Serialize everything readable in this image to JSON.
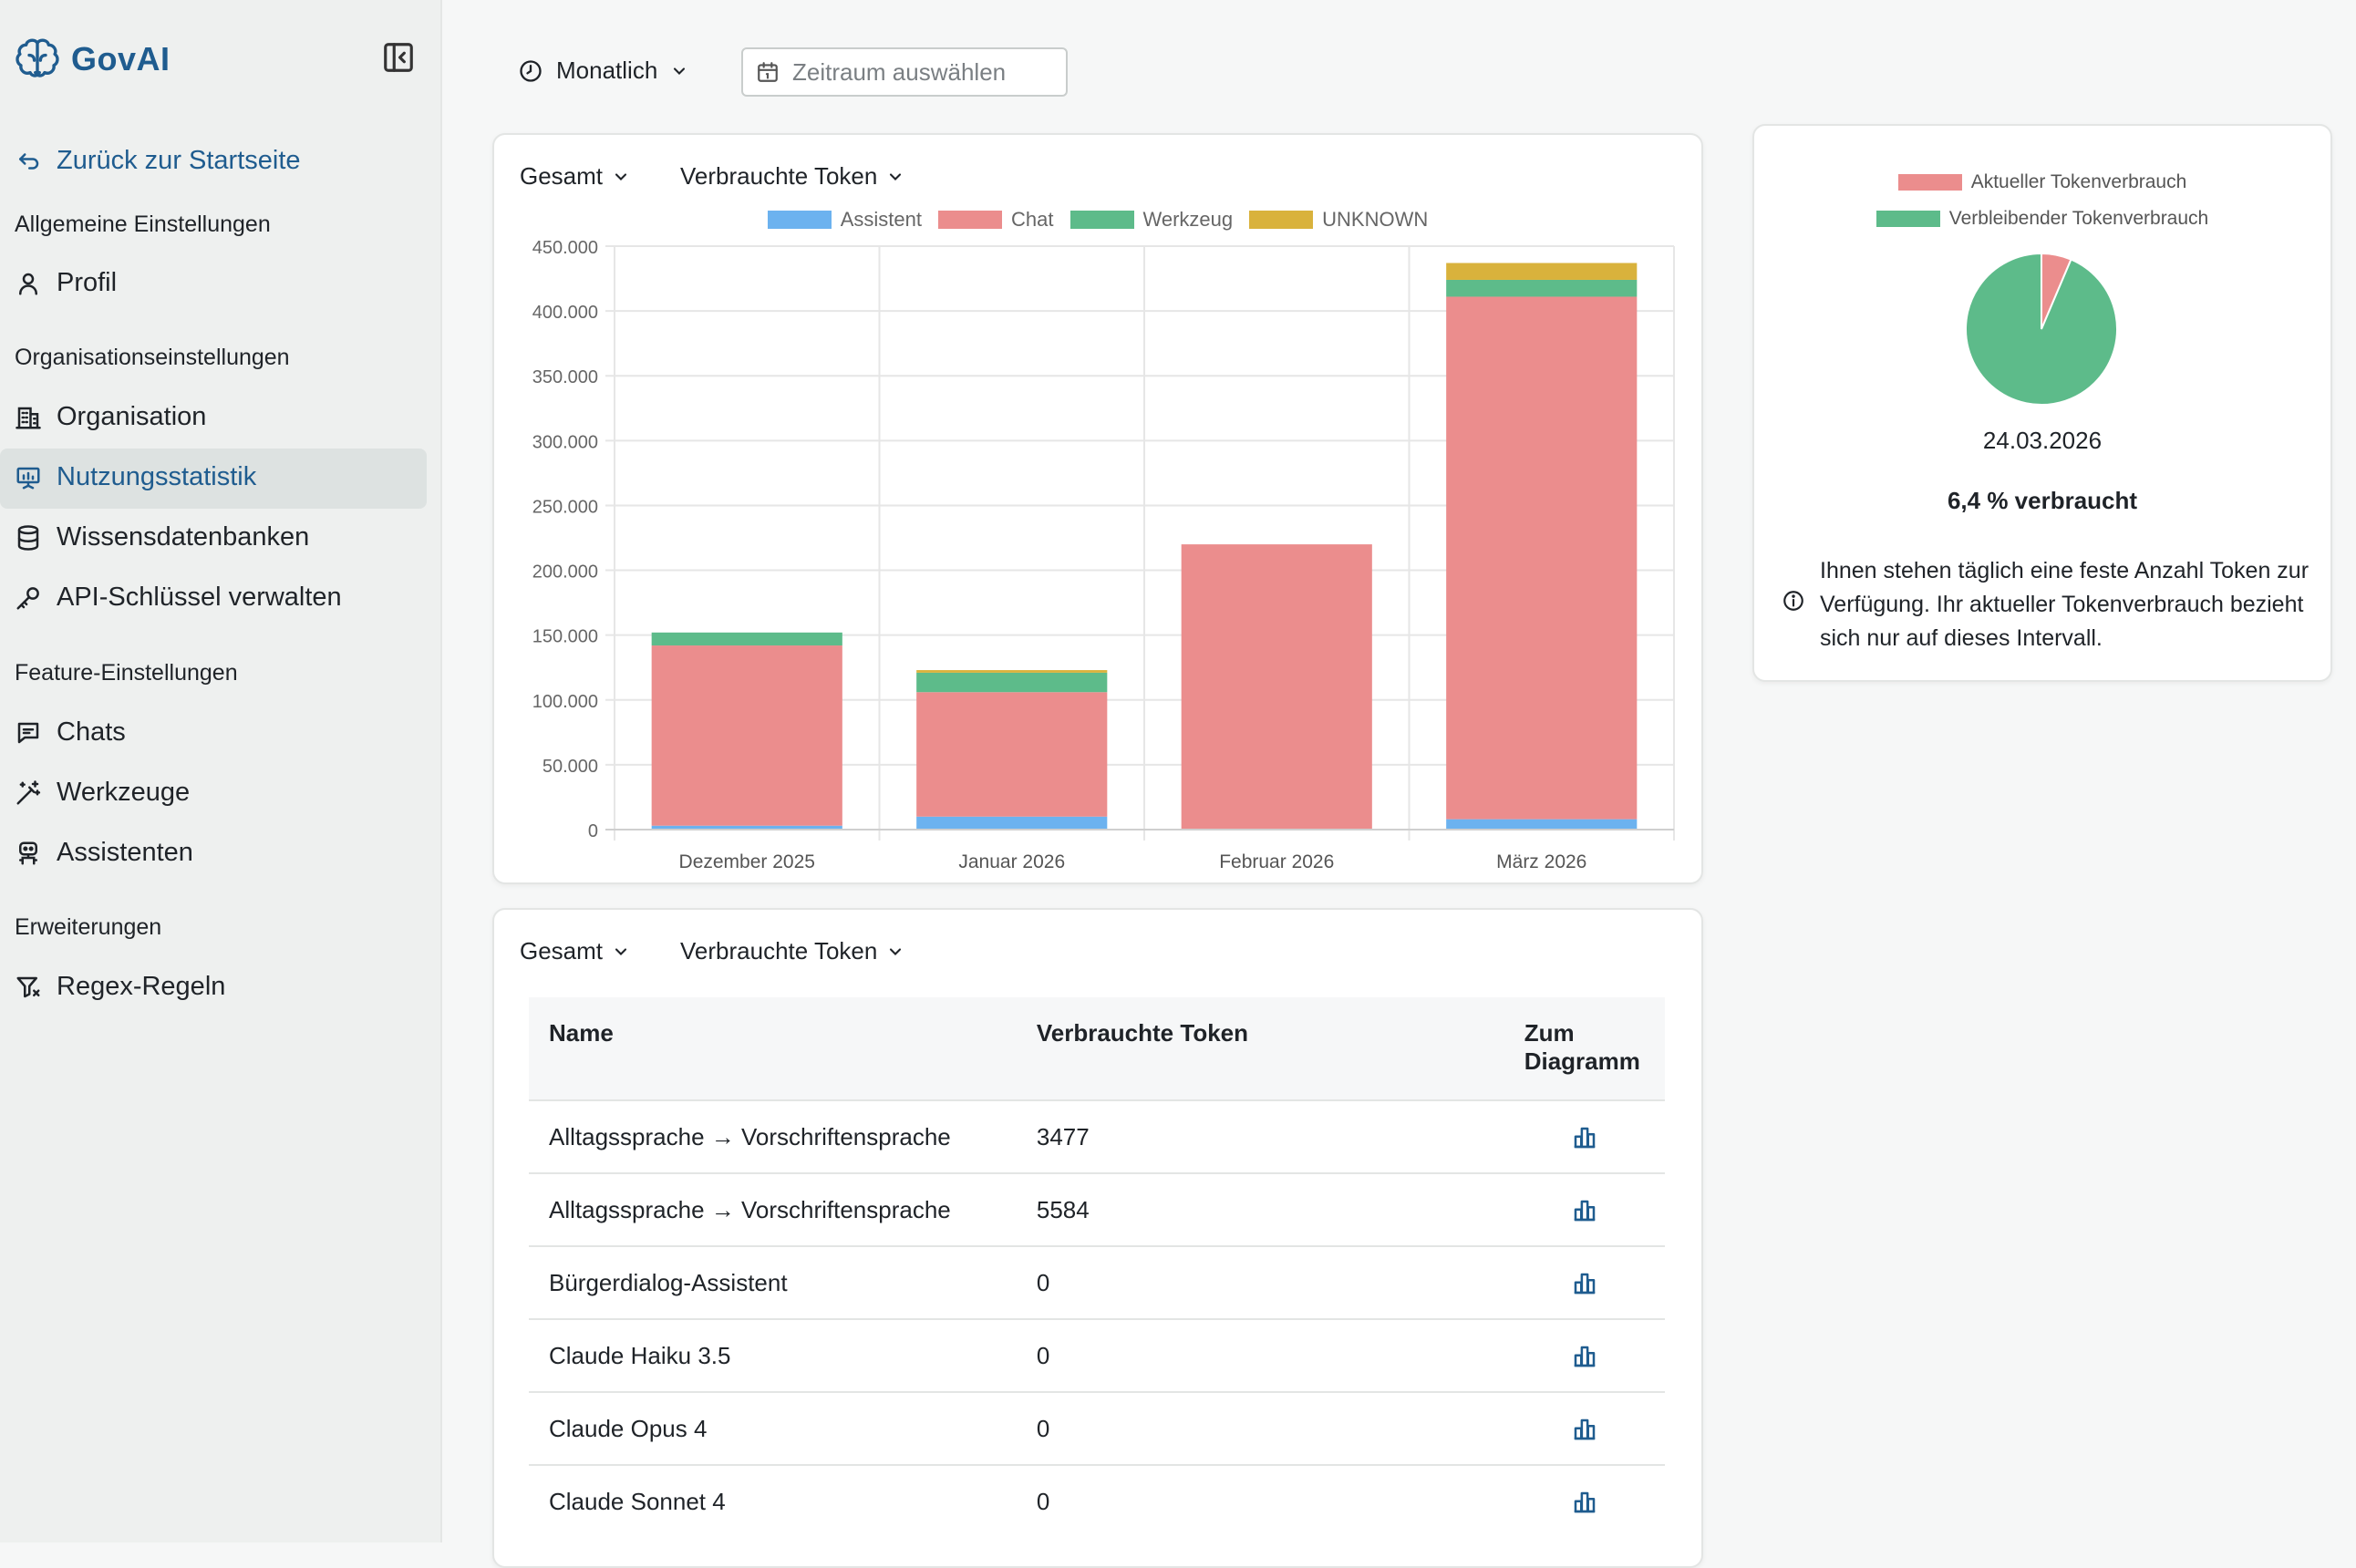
{
  "app": {
    "name": "GovAI"
  },
  "sidebar": {
    "back_label": "Zurück zur Startseite",
    "sections": {
      "general": "Allgemeine Einstellungen",
      "org": "Organisationseinstellungen",
      "features": "Feature-Einstellungen",
      "extensions": "Erweiterungen"
    },
    "items": {
      "profile": "Profil",
      "organisation": "Organisation",
      "usage": "Nutzungsstatistik",
      "knowledge": "Wissensdatenbanken",
      "api_keys": "API-Schlüssel verwalten",
      "chats": "Chats",
      "tools": "Werkzeuge",
      "assistants": "Assistenten",
      "regex": "Regex-Regeln"
    }
  },
  "toolbar": {
    "period": "Monatlich",
    "date_placeholder": "Zeitraum auswählen"
  },
  "chart_card": {
    "scope": "Gesamt",
    "metric": "Verbrauchte Token"
  },
  "chart_data": {
    "type": "bar",
    "stacked": true,
    "categories": [
      "Dezember 2025",
      "Januar 2026",
      "Februar 2026",
      "März 2026"
    ],
    "series": [
      {
        "name": "Assistent",
        "color": "#6cb2ef",
        "values": [
          3000,
          10000,
          0,
          8000
        ]
      },
      {
        "name": "Chat",
        "color": "#eb8d8d",
        "values": [
          139000,
          96000,
          220000,
          403000
        ]
      },
      {
        "name": "Werkzeug",
        "color": "#5dbb8a",
        "values": [
          10000,
          15000,
          0,
          13000
        ]
      },
      {
        "name": "UNKNOWN",
        "color": "#d9b23c",
        "values": [
          0,
          2000,
          0,
          13000
        ]
      }
    ],
    "ylim": [
      0,
      450000
    ],
    "yticks": [
      "0",
      "50.000",
      "100.000",
      "150.000",
      "200.000",
      "250.000",
      "300.000",
      "350.000",
      "400.000",
      "450.000"
    ],
    "grid": true,
    "legend": "top"
  },
  "table_card": {
    "scope": "Gesamt",
    "metric": "Verbrauchte Token",
    "headers": {
      "name": "Name",
      "tokens": "Verbrauchte Token",
      "chart": "Zum Diagramm"
    },
    "rows": [
      {
        "name": "Alltagssprache → Vorschriftensprache",
        "tokens": "3477"
      },
      {
        "name": "Alltagssprache → Vorschriftensprache",
        "tokens": "5584"
      },
      {
        "name": "Bürgerdialog-Assistent",
        "tokens": "0"
      },
      {
        "name": "Claude Haiku 3.5",
        "tokens": "0"
      },
      {
        "name": "Claude Opus 4",
        "tokens": "0"
      },
      {
        "name": "Claude Sonnet 4",
        "tokens": "0"
      }
    ]
  },
  "pie_card": {
    "legend_current": "Aktueller Tokenverbrauch",
    "legend_remaining": "Verbleibender Tokenverbrauch",
    "date": "24.03.2026",
    "used_label": "6,4 % verbraucht",
    "used_fraction": 0.064,
    "info": "Ihnen stehen täglich eine feste Anzahl Token zur Verfügung. Ihr aktueller Tokenverbrauch bezieht sich nur auf dieses Intervall.",
    "colors": {
      "current": "#eb8d8d",
      "remaining": "#5dbb8a"
    }
  },
  "colors": {
    "accent": "#1f5c8f",
    "active_bg": "#dde2e1"
  }
}
